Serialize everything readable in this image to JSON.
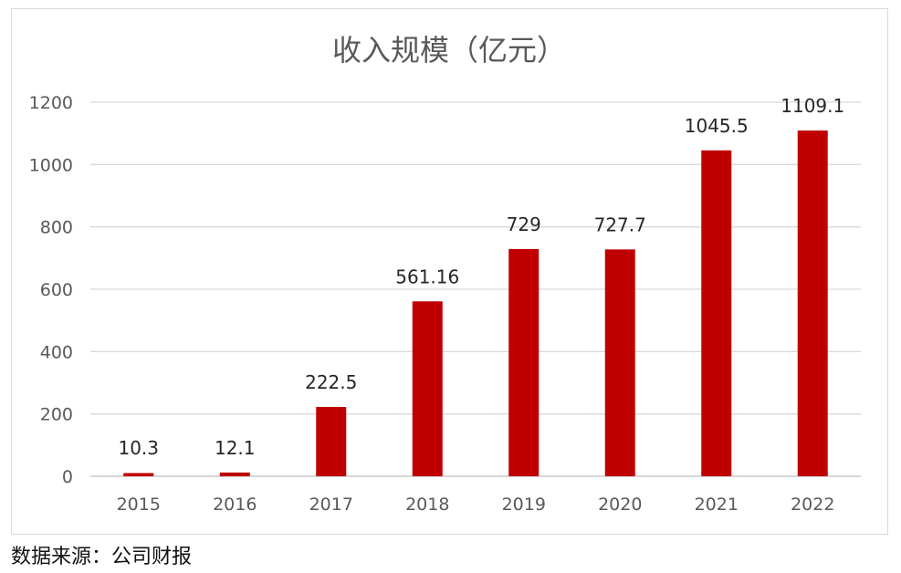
{
  "chart_data": {
    "type": "bar",
    "title": "收入规模（亿元）",
    "categories": [
      "2015",
      "2016",
      "2017",
      "2018",
      "2019",
      "2020",
      "2021",
      "2022"
    ],
    "values": [
      10.3,
      12.1,
      222.5,
      561.16,
      729,
      727.7,
      1045.5,
      1109.1
    ],
    "data_labels": [
      "10.3",
      "12.1",
      "222.5",
      "561.16",
      "729",
      "727.7",
      "1045.5",
      "1109.1"
    ],
    "ylim": [
      0,
      1200
    ],
    "yticks": [
      0,
      200,
      400,
      600,
      800,
      1000,
      1200
    ],
    "grid": true,
    "legend": "none",
    "xlabel": "",
    "ylabel": "",
    "bar_color": "#c00000"
  },
  "source_note": "数据来源：公司财报"
}
